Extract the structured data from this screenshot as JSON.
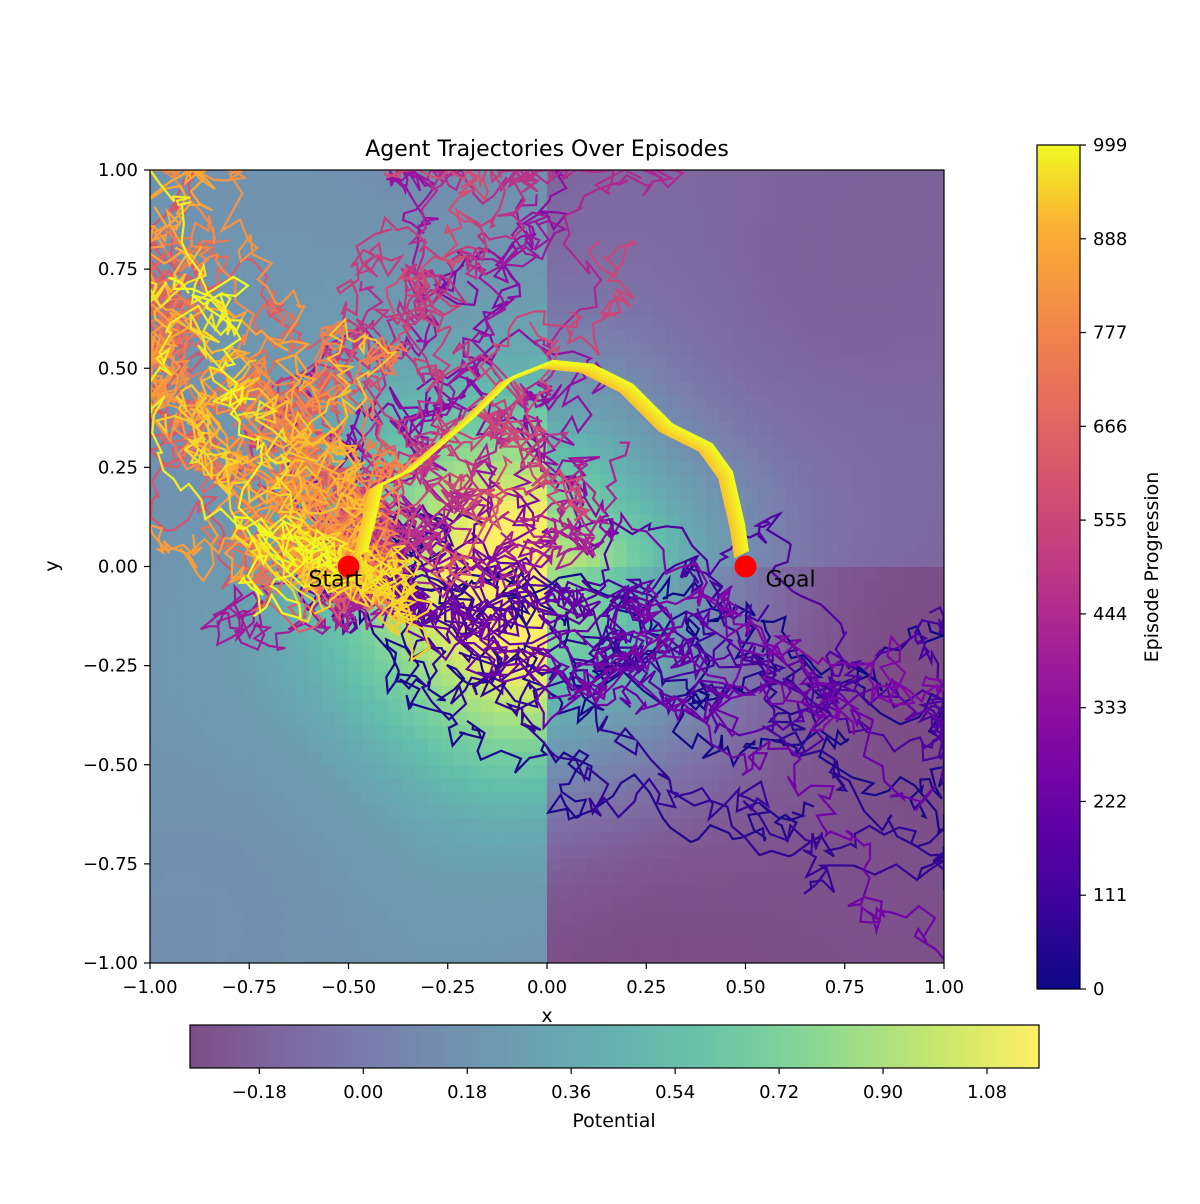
{
  "chart_data": {
    "type": "line",
    "title": "Agent Trajectories Over Episodes",
    "xlabel": "x",
    "ylabel": "y",
    "xlim": [
      -1.0,
      1.0
    ],
    "ylim": [
      -1.0,
      1.0
    ],
    "x_ticks": [
      "−1.00",
      "−0.75",
      "−0.50",
      "−0.25",
      "0.00",
      "0.25",
      "0.50",
      "0.75",
      "1.00"
    ],
    "y_ticks": [
      "−1.00",
      "−0.75",
      "−0.50",
      "−0.25",
      "0.00",
      "0.25",
      "0.50",
      "0.75",
      "1.00"
    ],
    "x_tick_values": [
      -1.0,
      -0.75,
      -0.5,
      -0.25,
      0.0,
      0.25,
      0.5,
      0.75,
      1.0
    ],
    "y_tick_values": [
      -1.0,
      -0.75,
      -0.5,
      -0.25,
      0.0,
      0.25,
      0.5,
      0.75,
      1.0
    ],
    "background": {
      "type": "filled-contour",
      "quantity_label": "Potential",
      "colormap": "viridis",
      "alpha": 0.7,
      "peak": {
        "x": -0.05,
        "y": -0.05,
        "value": 1.17
      },
      "min_value": -0.3,
      "colorbar_ticks": [
        "−0.18",
        "0.00",
        "0.18",
        "0.36",
        "0.54",
        "0.72",
        "0.90",
        "1.08"
      ],
      "colorbar_tick_values": [
        -0.18,
        0.0,
        0.18,
        0.36,
        0.54,
        0.72,
        0.9,
        1.08
      ],
      "colorbar_range": [
        -0.3,
        1.17
      ]
    },
    "trajectories": {
      "episodes_range": [
        0,
        999
      ],
      "colormap": "plasma",
      "colorbar_label": "Episode Progression",
      "colorbar_ticks": [
        "0",
        "111",
        "222",
        "333",
        "444",
        "555",
        "666",
        "777",
        "888",
        "999"
      ],
      "colorbar_tick_values": [
        0,
        111,
        222,
        333,
        444,
        555,
        666,
        777,
        888,
        999
      ],
      "final_path": [
        [
          -0.47,
          0.03
        ],
        [
          -0.43,
          0.2
        ],
        [
          -0.35,
          0.24
        ],
        [
          -0.2,
          0.37
        ],
        [
          -0.1,
          0.47
        ],
        [
          0.0,
          0.51
        ],
        [
          0.1,
          0.5
        ],
        [
          0.2,
          0.45
        ],
        [
          0.3,
          0.35
        ],
        [
          0.4,
          0.3
        ],
        [
          0.45,
          0.23
        ],
        [
          0.48,
          0.1
        ],
        [
          0.49,
          0.03
        ]
      ]
    },
    "points": [
      {
        "label": "Start",
        "x": -0.5,
        "y": 0.0,
        "color": "#ff0000"
      },
      {
        "label": "Goal",
        "x": 0.5,
        "y": 0.0,
        "color": "#ff0000"
      }
    ]
  }
}
